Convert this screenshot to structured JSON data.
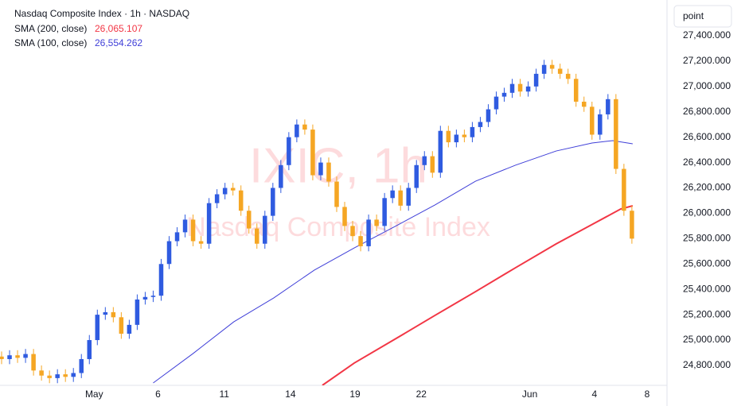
{
  "chart_data": {
    "type": "candlestick",
    "title": "Nasdaq Composite Index · 1h · NASDAQ",
    "watermark": "IXIC, 1h",
    "watermark_subtitle": "Nasdaq Composite Index",
    "scale_unit": "point",
    "up_color": "#2f5be0",
    "down_color": "#f5a623",
    "x": [
      0,
      1,
      2,
      3,
      4,
      5,
      6,
      7,
      8,
      9,
      10,
      11,
      12,
      13,
      14,
      15,
      16,
      17,
      18,
      19,
      20,
      21,
      22,
      23,
      24,
      25,
      26,
      27,
      28,
      29,
      30,
      31,
      32,
      33,
      34,
      35,
      36,
      37,
      38,
      39,
      40,
      41,
      42,
      43,
      44,
      45,
      46,
      47,
      48,
      49,
      50,
      51,
      52,
      53,
      54,
      55,
      56,
      57,
      58,
      59,
      60,
      61,
      62,
      63,
      64,
      65,
      66,
      67,
      68,
      69,
      70,
      71,
      72,
      73,
      74,
      75,
      76,
      77,
      78,
      79
    ],
    "open": [
      24870,
      24850,
      24880,
      24860,
      24890,
      24760,
      24720,
      24700,
      24730,
      24710,
      24740,
      24850,
      25000,
      25200,
      25220,
      25180,
      25050,
      25120,
      25320,
      25340,
      25350,
      25600,
      25780,
      25850,
      25950,
      25780,
      25760,
      26080,
      26150,
      26200,
      26180,
      26020,
      25880,
      25760,
      25980,
      26200,
      26380,
      26600,
      26700,
      26660,
      26300,
      26400,
      26250,
      26050,
      25900,
      25820,
      25740,
      25950,
      25900,
      26120,
      26180,
      26060,
      26200,
      26380,
      26450,
      26320,
      26650,
      26560,
      26620,
      26600,
      26680,
      26720,
      26820,
      26920,
      26950,
      27020,
      26960,
      27000,
      27100,
      27170,
      27140,
      27100,
      27060,
      26880,
      26840,
      26620,
      26780,
      26900,
      26350,
      26020
    ],
    "high": [
      24910,
      24920,
      24920,
      24930,
      24930,
      24800,
      24760,
      24770,
      24770,
      24780,
      24890,
      25040,
      25240,
      25260,
      25260,
      25220,
      25160,
      25360,
      25380,
      25390,
      25640,
      25820,
      25890,
      25990,
      25990,
      25820,
      26120,
      26190,
      26240,
      26240,
      26220,
      26060,
      25920,
      26020,
      26240,
      26420,
      26640,
      26740,
      26740,
      26700,
      26440,
      26440,
      26290,
      26090,
      25940,
      25860,
      25990,
      25990,
      26160,
      26220,
      26220,
      26240,
      26420,
      26490,
      26490,
      26690,
      26690,
      26660,
      26660,
      26720,
      26760,
      26860,
      26960,
      26990,
      27060,
      27060,
      27040,
      27140,
      27210,
      27210,
      27180,
      27140,
      27100,
      26920,
      26880,
      26820,
      26940,
      26940,
      26390,
      26060
    ],
    "low": [
      24810,
      24810,
      24820,
      24820,
      24720,
      24680,
      24660,
      24660,
      24670,
      24670,
      24700,
      24810,
      24960,
      25160,
      25140,
      25010,
      25010,
      25080,
      25280,
      25300,
      25310,
      25560,
      25740,
      25810,
      25740,
      25720,
      25720,
      26040,
      26110,
      26140,
      25980,
      25840,
      25720,
      25720,
      25940,
      26160,
      26340,
      26560,
      26620,
      26260,
      26260,
      26210,
      26010,
      25860,
      25780,
      25700,
      25700,
      25860,
      25860,
      26080,
      26020,
      26020,
      26160,
      26340,
      26280,
      26280,
      26520,
      26520,
      26560,
      26560,
      26640,
      26680,
      26780,
      26880,
      26910,
      26920,
      26920,
      26960,
      27060,
      27100,
      27060,
      27020,
      26840,
      26800,
      26580,
      26580,
      26740,
      26310,
      25980,
      25760
    ],
    "close": [
      24850,
      24880,
      24860,
      24890,
      24760,
      24720,
      24700,
      24730,
      24710,
      24740,
      24850,
      25000,
      25200,
      25220,
      25180,
      25050,
      25120,
      25320,
      25340,
      25350,
      25600,
      25780,
      25850,
      25950,
      25780,
      25760,
      26080,
      26150,
      26200,
      26180,
      26020,
      25880,
      25760,
      25980,
      26200,
      26380,
      26600,
      26700,
      26660,
      26300,
      26400,
      26250,
      26050,
      25900,
      25820,
      25740,
      25950,
      25900,
      26120,
      26180,
      26060,
      26200,
      26380,
      26450,
      26320,
      26650,
      26560,
      26620,
      26600,
      26680,
      26720,
      26820,
      26920,
      26950,
      27020,
      26960,
      27000,
      27100,
      27170,
      27140,
      27100,
      27060,
      26880,
      26840,
      26620,
      26780,
      26900,
      26350,
      26020,
      25800
    ],
    "overlays": [
      {
        "name": "SMA (200, close)",
        "color": "#f23645",
        "last_value": {
          "value": 26065.107,
          "label": "26,065.107"
        },
        "x": [
          40.2,
          44.2,
          49.3,
          54.3,
          59.4,
          64.4,
          69.5,
          74.5,
          77.6,
          79.1
        ],
        "values": [
          24643,
          24819,
          25007,
          25194,
          25382,
          25570,
          25758,
          25928,
          26034,
          26059
        ]
      },
      {
        "name": "SMA (100, close)",
        "color": "#3f3fd8",
        "last_value": {
          "value": 26554.262,
          "label": "26,554.262"
        },
        "x": [
          19.0,
          24.0,
          29.1,
          34.1,
          39.2,
          44.2,
          49.3,
          54.3,
          59.4,
          64.4,
          69.5,
          74.0,
          76.6,
          79.1
        ],
        "values": [
          24662,
          24894,
          25144,
          25332,
          25552,
          25727,
          25896,
          26065,
          26253,
          26379,
          26491,
          26554,
          26573,
          26548
        ]
      }
    ],
    "xlim": [
      -0.2,
      83.4
    ],
    "xticks": [
      {
        "value": 11.6,
        "label": "May"
      },
      {
        "value": 19.6,
        "label": "6"
      },
      {
        "value": 27.9,
        "label": "11"
      },
      {
        "value": 36.2,
        "label": "14"
      },
      {
        "value": 44.3,
        "label": "19"
      },
      {
        "value": 52.6,
        "label": "22"
      },
      {
        "value": 66.2,
        "label": "Jun"
      },
      {
        "value": 74.3,
        "label": "4"
      },
      {
        "value": 80.9,
        "label": "8"
      }
    ],
    "ylim": [
      24643,
      27682
    ],
    "yticks": [
      {
        "value": 24800,
        "label": "24,800.000"
      },
      {
        "value": 25000,
        "label": "25,000.000"
      },
      {
        "value": 25200,
        "label": "25,200.000"
      },
      {
        "value": 25400,
        "label": "25,400.000"
      },
      {
        "value": 25600,
        "label": "25,600.000"
      },
      {
        "value": 25800,
        "label": "25,800.000"
      },
      {
        "value": 26000,
        "label": "26,000.000"
      },
      {
        "value": 26200,
        "label": "26,200.000"
      },
      {
        "value": 26400,
        "label": "26,400.000"
      },
      {
        "value": 26600,
        "label": "26,600.000"
      },
      {
        "value": 26800,
        "label": "26,800.000"
      },
      {
        "value": 27000,
        "label": "27,000.000"
      },
      {
        "value": 27200,
        "label": "27,200.000"
      },
      {
        "value": 27400,
        "label": "27,400.000"
      }
    ]
  }
}
